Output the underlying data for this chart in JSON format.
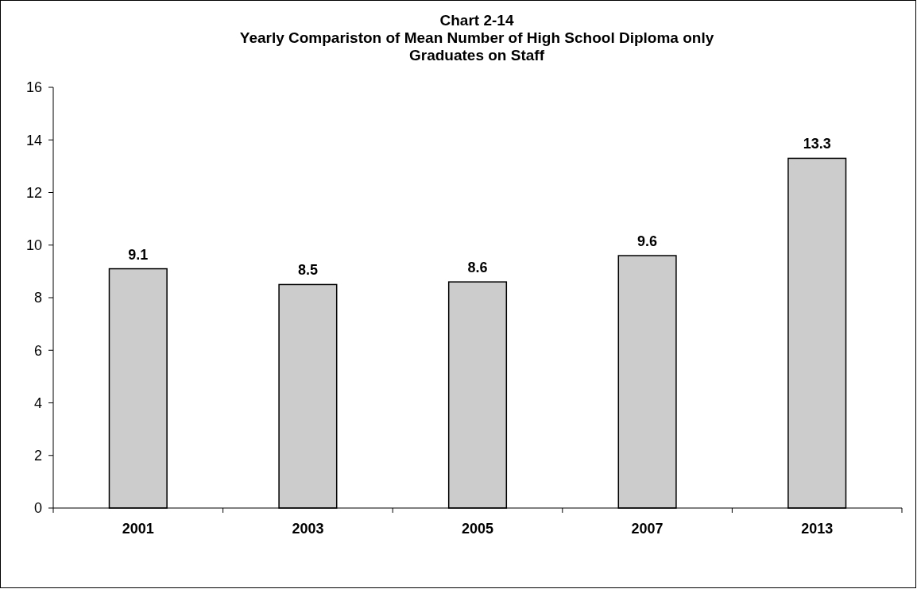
{
  "chart_data": {
    "type": "bar",
    "title": "Chart 2-14\nYearly Compariston of Mean Number of High School Diploma only\nGraduates on Staff",
    "categories": [
      "2001",
      "2003",
      "2005",
      "2007",
      "2013"
    ],
    "values": [
      9.1,
      8.5,
      8.6,
      9.6,
      13.3
    ],
    "color": "#cccccc",
    "ylim": [
      0,
      16
    ],
    "yticks": [
      0,
      2,
      4,
      6,
      8,
      10,
      12,
      14,
      16
    ],
    "grid": false,
    "data_labels": true
  }
}
